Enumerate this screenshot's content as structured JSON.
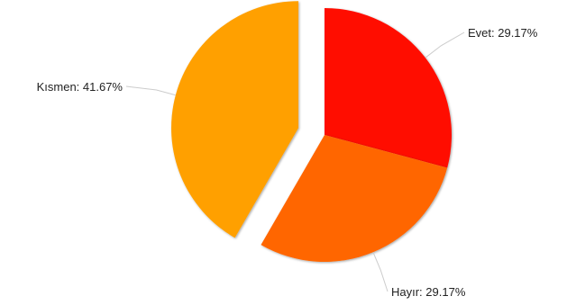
{
  "chart_data": {
    "type": "pie",
    "title": "",
    "slices": [
      {
        "label": "Evet: 29.17%",
        "value": 29.17,
        "color": "#ff0d00",
        "exploded": false
      },
      {
        "label": "Hayır: 29.17%",
        "value": 29.17,
        "color": "#ff6600",
        "exploded": false
      },
      {
        "label": "Kısmen: 41.67%",
        "value": 41.67,
        "color": "#ffa000",
        "exploded": true
      }
    ],
    "start_angle_deg": 0,
    "direction": "clockwise",
    "legend": "none"
  }
}
